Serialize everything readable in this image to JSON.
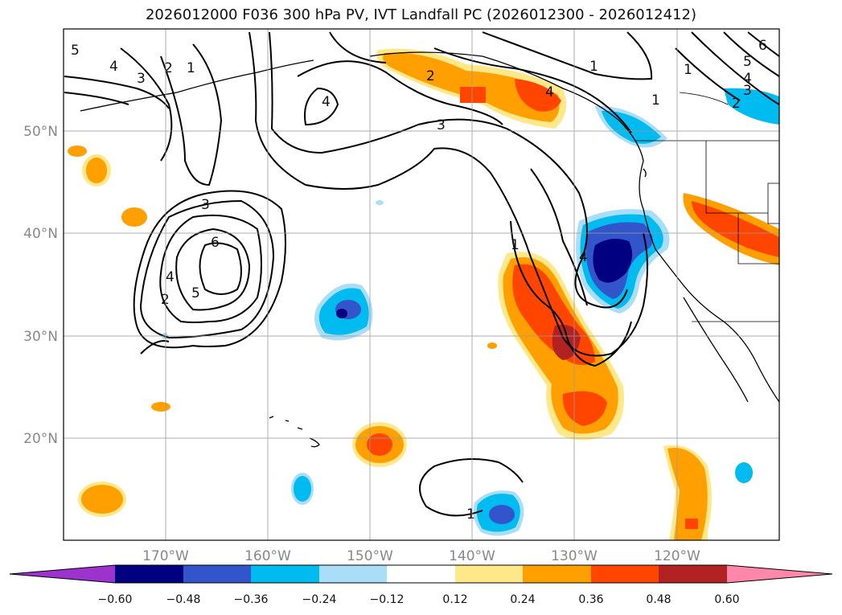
{
  "title": "2026012000 F036 300 hPa PV, IVT Landfall PC (2026012300 - 2026012412)",
  "lat_labels": [
    "50°N",
    "40°N",
    "30°N",
    "20°N"
  ],
  "lon_labels": [
    "170°W",
    "160°W",
    "150°W",
    "140°W",
    "130°W",
    "120°W"
  ],
  "colorbar": {
    "ticks": [
      "−0.60",
      "−0.48",
      "−0.36",
      "−0.24",
      "−0.12",
      "0.12",
      "0.24",
      "0.36",
      "0.48",
      "0.60"
    ],
    "colors": [
      "#9b33cc",
      "#000080",
      "#3355cc",
      "#00bbf0",
      "#aaddf8",
      "#ffffff",
      "#ffe88a",
      "#ffa000",
      "#ff4500",
      "#b22222",
      "#ff88aa"
    ]
  },
  "contour_labels": [
    "5",
    "4",
    "3",
    "2",
    "1",
    "1",
    "4",
    "2",
    "3",
    "4",
    "1",
    "3",
    "6",
    "4",
    "5",
    "2",
    "1",
    "4",
    "1",
    "5",
    "4",
    "3",
    "2",
    "1",
    "6"
  ],
  "colors": {
    "pos1": "#ffe88a",
    "pos2": "#ffa000",
    "pos3": "#ff4500",
    "pos4": "#b22222",
    "neg1": "#aaddf8",
    "neg2": "#00bbf0",
    "neg3": "#3355cc",
    "neg4": "#000080"
  }
}
